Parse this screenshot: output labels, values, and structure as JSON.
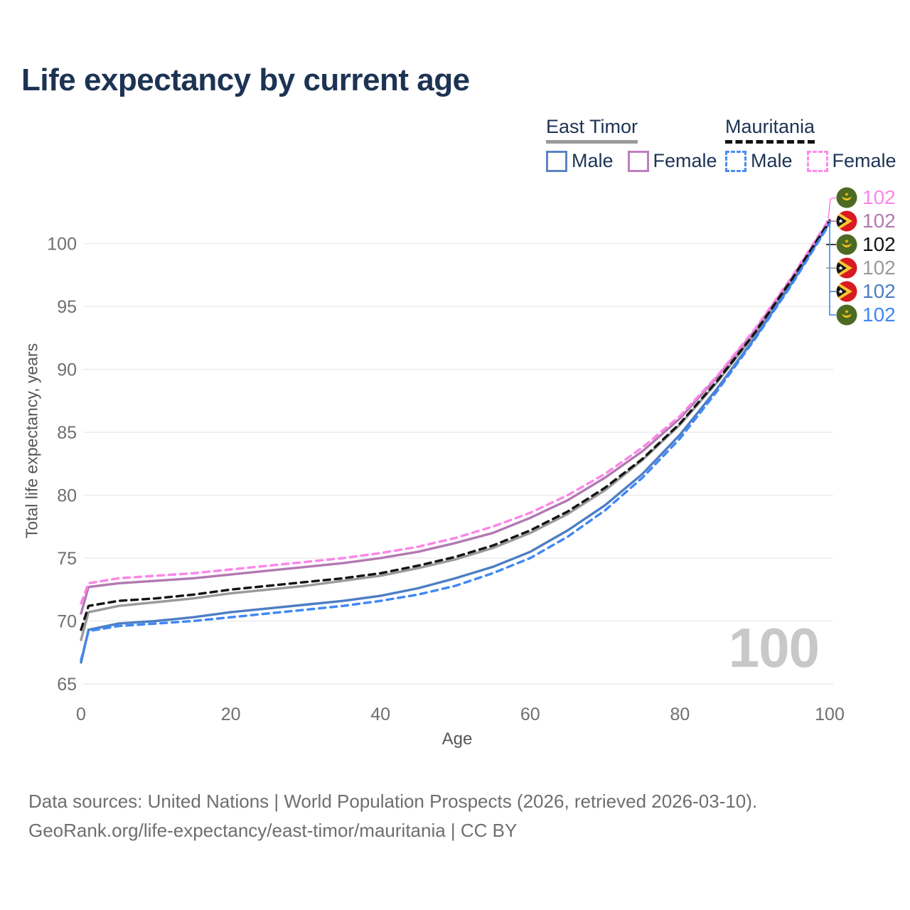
{
  "header": {
    "title": "Life expectancy by current age"
  },
  "legend": {
    "position": "top-right",
    "groups": [
      {
        "country": "East Timor",
        "line_style": "solid",
        "underline_color": "#9a9a9a",
        "items": [
          {
            "label": "Male",
            "color": "#5b84c4",
            "dash": false
          },
          {
            "label": "Female",
            "color": "#bd7fbd",
            "dash": false
          }
        ]
      },
      {
        "country": "Mauritania",
        "line_style": "dashed",
        "underline_color": "#141414",
        "items": [
          {
            "label": "Male",
            "color": "#4a8cf5",
            "dash": true
          },
          {
            "label": "Female",
            "color": "#ff8ae8",
            "dash": true
          }
        ]
      }
    ]
  },
  "chart_data": {
    "type": "line",
    "title": "Life expectancy by current age",
    "xlabel": "Age",
    "ylabel": "Total life expectancy, years",
    "xlim": [
      0,
      100
    ],
    "ylim": [
      65,
      102
    ],
    "xticks": [
      0,
      20,
      40,
      60,
      80,
      100
    ],
    "yticks": [
      65,
      70,
      75,
      80,
      85,
      90,
      95,
      100
    ],
    "grid": "horizontal",
    "legend_position": "top-right",
    "watermark": "100",
    "x": [
      0,
      1,
      5,
      10,
      15,
      20,
      25,
      30,
      35,
      40,
      45,
      50,
      55,
      60,
      65,
      70,
      75,
      80,
      85,
      90,
      95,
      100
    ],
    "series": [
      {
        "name": "Mauritania Female",
        "country": "Mauritania",
        "sex": "Female",
        "color": "#fc85e8",
        "dash": true,
        "flag": "mauritania",
        "end_label": "102",
        "values": [
          71.4,
          73.0,
          73.4,
          73.6,
          73.8,
          74.1,
          74.4,
          74.7,
          75.0,
          75.4,
          75.9,
          76.6,
          77.5,
          78.6,
          80.0,
          81.7,
          83.8,
          86.3,
          89.5,
          93.2,
          97.4,
          102.0
        ]
      },
      {
        "name": "East Timor Female",
        "country": "East Timor",
        "sex": "Female",
        "color": "#b279b2",
        "dash": false,
        "flag": "east-timor",
        "end_label": "102",
        "values": [
          70.6,
          72.7,
          73.0,
          73.2,
          73.4,
          73.7,
          74.0,
          74.3,
          74.6,
          75.0,
          75.5,
          76.2,
          77.0,
          78.2,
          79.6,
          81.4,
          83.5,
          86.1,
          89.4,
          93.1,
          97.3,
          101.9
        ]
      },
      {
        "name": "Mauritania Both sexes",
        "country": "Mauritania",
        "sex": "Both",
        "color": "#141414",
        "dash": true,
        "flag": "mauritania",
        "end_label": "102",
        "values": [
          69.3,
          71.2,
          71.6,
          71.8,
          72.1,
          72.5,
          72.8,
          73.1,
          73.4,
          73.8,
          74.4,
          75.1,
          76.0,
          77.2,
          78.7,
          80.6,
          82.9,
          85.7,
          89.1,
          92.9,
          97.2,
          101.8
        ]
      },
      {
        "name": "East Timor Both sexes",
        "country": "East Timor",
        "sex": "Both",
        "color": "#9a9a9a",
        "dash": false,
        "flag": "east-timor",
        "end_label": "102",
        "values": [
          68.5,
          70.7,
          71.2,
          71.5,
          71.8,
          72.2,
          72.5,
          72.8,
          73.2,
          73.6,
          74.2,
          74.9,
          75.8,
          77.0,
          78.5,
          80.4,
          82.8,
          85.6,
          89.0,
          92.8,
          97.1,
          101.7
        ]
      },
      {
        "name": "East Timor Male",
        "country": "East Timor",
        "sex": "Male",
        "color": "#4d7ec4",
        "dash": false,
        "flag": "east-timor",
        "end_label": "102",
        "values": [
          66.7,
          69.3,
          69.8,
          70.0,
          70.3,
          70.7,
          71.0,
          71.3,
          71.6,
          72.0,
          72.6,
          73.4,
          74.3,
          75.5,
          77.2,
          79.2,
          81.7,
          84.8,
          88.5,
          92.5,
          96.9,
          101.7
        ]
      },
      {
        "name": "Mauritania Male",
        "country": "Mauritania",
        "sex": "Male",
        "color": "#3f87f5",
        "dash": true,
        "flag": "mauritania",
        "end_label": "102",
        "values": [
          66.9,
          69.2,
          69.6,
          69.8,
          70.0,
          70.3,
          70.6,
          70.9,
          71.2,
          71.6,
          72.1,
          72.8,
          73.8,
          75.0,
          76.7,
          78.8,
          81.4,
          84.5,
          88.3,
          92.4,
          96.8,
          101.6
        ]
      }
    ]
  },
  "footer": {
    "line1": "Data sources: United Nations | World Population Prospects (2026, retrieved 2026-03-10).",
    "line2": "GeoRank.org/life-expectancy/east-timor/mauritania | CC BY"
  }
}
